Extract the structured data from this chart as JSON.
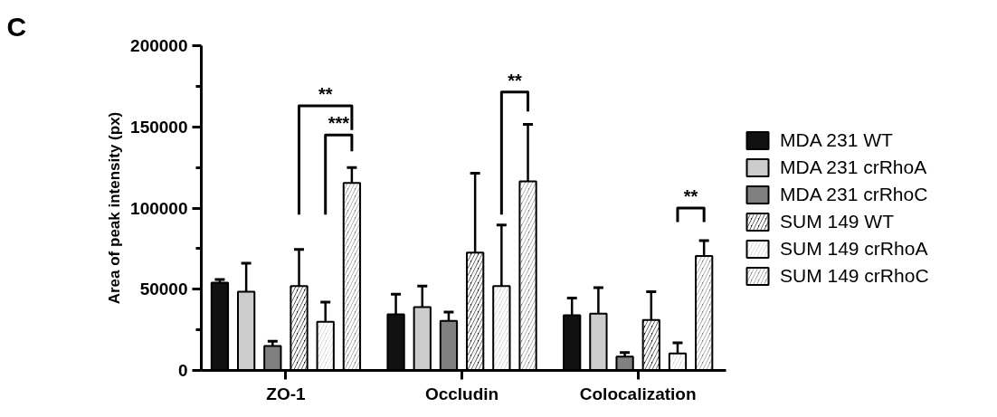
{
  "chart_data": {
    "type": "bar",
    "title": "C",
    "ylabel": "Area of peak intensity (px)",
    "categories": [
      "ZO-1",
      "Occludin",
      "Colocalization"
    ],
    "series": [
      {
        "name": "MDA 231 WT",
        "color": "#111111",
        "values": [
          54000,
          34500,
          34000
        ],
        "errors": [
          [
            54000,
            56000
          ],
          [
            34500,
            47000
          ],
          [
            34000,
            44500
          ]
        ]
      },
      {
        "name": "MDA 231 crRhoA",
        "color": "#cccccc",
        "values": [
          48500,
          39000,
          35000
        ],
        "errors": [
          [
            48500,
            66000
          ],
          [
            39000,
            52000
          ],
          [
            35000,
            51000
          ]
        ]
      },
      {
        "name": "MDA 231 crRhoC",
        "color": "#808080",
        "values": [
          15000,
          30500,
          8500
        ],
        "errors": [
          [
            15000,
            18000
          ],
          [
            30500,
            36000
          ],
          [
            8500,
            11000
          ]
        ]
      },
      {
        "name": "SUM 149 WT",
        "color": "#111111",
        "values": [
          52000,
          72500,
          31000
        ],
        "errors": [
          [
            52000,
            74500
          ],
          [
            72500,
            121500
          ],
          [
            31000,
            48500
          ]
        ]
      },
      {
        "name": "SUM 149 crRhoA",
        "color": "#cccccc",
        "values": [
          30000,
          52000,
          10500
        ],
        "errors": [
          [
            30000,
            42000
          ],
          [
            52000,
            89500
          ],
          [
            10500,
            17000
          ]
        ]
      },
      {
        "name": "SUM 149 crRhoC",
        "color": "#808080",
        "values": [
          115500,
          116500,
          70500
        ],
        "errors": [
          [
            115500,
            125000
          ],
          [
            116500,
            151500
          ],
          [
            70500,
            80000
          ]
        ]
      }
    ],
    "annotations": [
      "**",
      "***",
      "**",
      "**"
    ],
    "ylim": [
      0,
      200000
    ],
    "yticks": [
      0,
      {
        "value": 25000,
        "label": null
      },
      50000,
      {
        "value": 75000,
        "label": null
      },
      100000,
      {
        "value": 125000,
        "label": null
      },
      150000,
      {
        "value": 175000,
        "label": null
      },
      200000
    ],
    "grid": false,
    "legend": "right"
  }
}
